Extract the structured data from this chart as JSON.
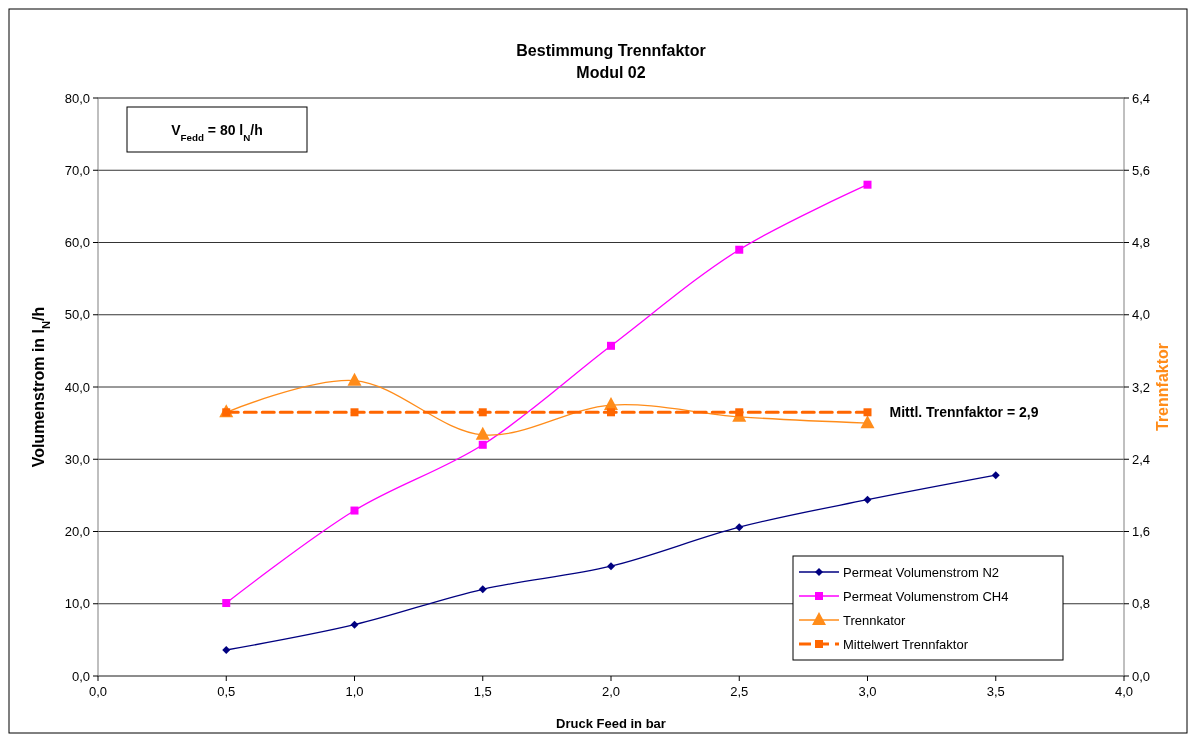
{
  "chart_data": {
    "type": "line",
    "title": "Bestimmung Trennfaktor",
    "subtitle": "Modul 02",
    "xlabel": "Druck Feed in bar",
    "ylabel": "Volumenstrom in l$_{N}$/h",
    "y2label": "Trennfaktor",
    "x": [
      0.5,
      1.0,
      1.5,
      2.0,
      2.5,
      3.0,
      3.5
    ],
    "series": [
      {
        "name": "Permeat Volumenstrom N2",
        "color": "#000080",
        "marker": "diamond",
        "line_style": "solid",
        "values": [
          3.6,
          7.1,
          12.0,
          15.2,
          20.6,
          24.4,
          27.8
        ]
      },
      {
        "name": "Permeat Volumenstrom CH4",
        "color": "#ff00ff",
        "marker": "square",
        "line_style": "solid",
        "values": [
          10.1,
          22.9,
          32.0,
          45.7,
          59.0,
          68.0,
          null
        ]
      },
      {
        "name": "Trennkator",
        "color": "#ff8c1a",
        "marker": "triangle",
        "line_style": "solid",
        "axis": "y2",
        "values": [
          2.92,
          3.27,
          2.67,
          3.0,
          2.87,
          2.8,
          null
        ]
      },
      {
        "name": "Mittelwert Trennfaktor",
        "color": "#ff6600",
        "marker": "square",
        "line_style": "dashed",
        "axis": "y2",
        "values": [
          2.92,
          2.92,
          2.92,
          2.92,
          2.92,
          2.92,
          null
        ]
      }
    ],
    "xlim": [
      0,
      4
    ],
    "xticks": [
      {
        "value": 0,
        "label": "0,0"
      },
      {
        "value": 0.5,
        "label": "0,5"
      },
      {
        "value": 1,
        "label": "1,0"
      },
      {
        "value": 1.5,
        "label": "1,5"
      },
      {
        "value": 2,
        "label": "2,0"
      },
      {
        "value": 2.5,
        "label": "2,5"
      },
      {
        "value": 3,
        "label": "3,0"
      },
      {
        "value": 3.5,
        "label": "3,5"
      },
      {
        "value": 4,
        "label": "4,0"
      }
    ],
    "ylim": [
      0,
      80
    ],
    "yticks": [
      {
        "value": 0,
        "label": "0,0"
      },
      {
        "value": 10,
        "label": "10,0"
      },
      {
        "value": 20,
        "label": "20,0"
      },
      {
        "value": 30,
        "label": "30,0"
      },
      {
        "value": 40,
        "label": "40,0"
      },
      {
        "value": 50,
        "label": "50,0"
      },
      {
        "value": 60,
        "label": "60,0"
      },
      {
        "value": 70,
        "label": "70,0"
      },
      {
        "value": 80,
        "label": "80,0"
      }
    ],
    "y2lim": [
      0,
      6.4
    ],
    "y2ticks": [
      {
        "value": 0,
        "label": "0,0"
      },
      {
        "value": 0.8,
        "label": "0,8"
      },
      {
        "value": 1.6,
        "label": "1,6"
      },
      {
        "value": 2.4,
        "label": "2,4"
      },
      {
        "value": 3.2,
        "label": "3,2"
      },
      {
        "value": 4.0,
        "label": "4,0"
      },
      {
        "value": 4.8,
        "label": "4,8"
      },
      {
        "value": 5.6,
        "label": "5,6"
      },
      {
        "value": 6.4,
        "label": "6,4"
      }
    ],
    "grid": "y",
    "legend": "bottom right",
    "annotations": [
      "V$_{Fedd}$ = 80 l$_{N}$/h",
      "Mittl. Trennfaktor = 2,9"
    ]
  }
}
